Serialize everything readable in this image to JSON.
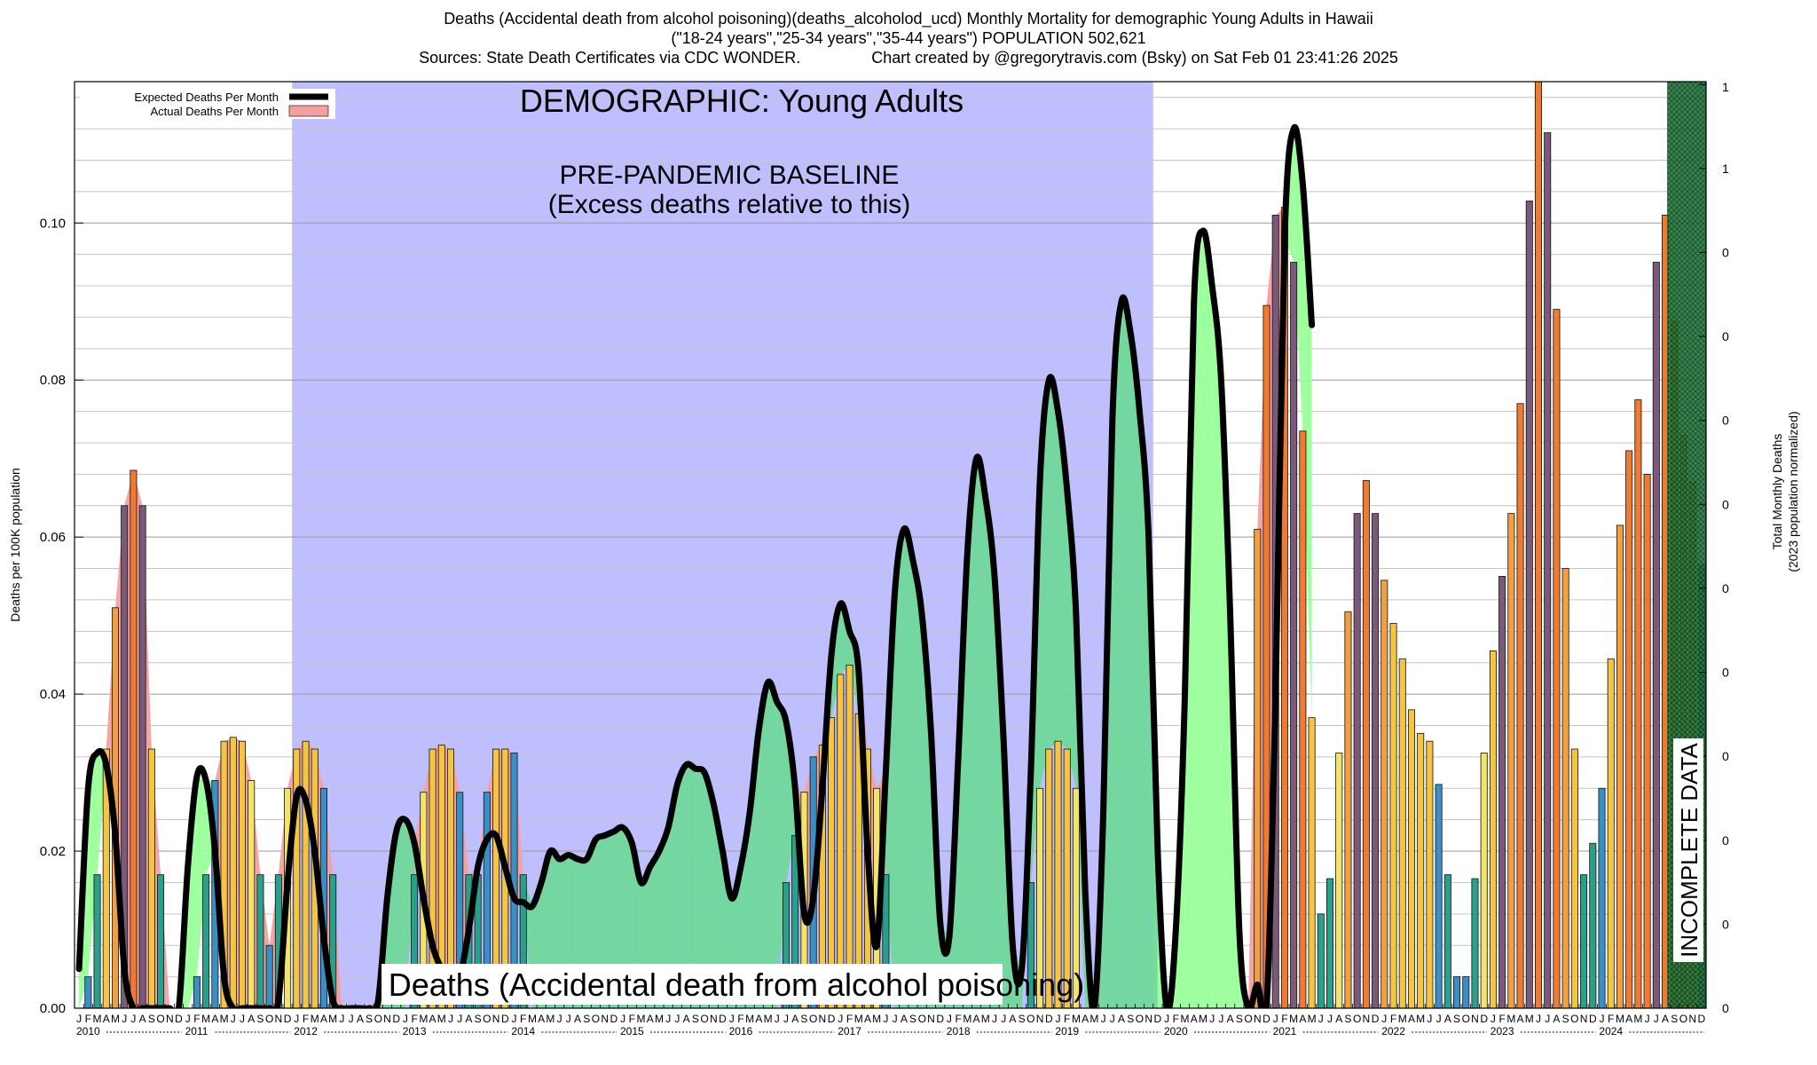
{
  "header": {
    "line1": "Deaths (Accidental death from alcohol poisoning)(deaths_alcoholod_ucd) Monthly Mortality for demographic Young Adults in Hawaii",
    "line2": "(\"18-24 years\",\"25-34 years\",\"35-44 years\") POPULATION 502,621",
    "line3": "Sources: State Death Certificates via CDC WONDER.                Chart created by @gregorytravis.com (Bsky) on Sat Feb 01 23:41:26 2025"
  },
  "chart_data": {
    "type": "bar",
    "title": "Deaths (Accidental death from alcohol poisoning)(deaths_alcoholod_ucd) Monthly Mortality for demographic Young Adults in Hawaii",
    "ylabel": "Deaths per 100K population",
    "ylabel_right": "Total Monthly Deaths",
    "ylabel_right_sub": "(2023 population normalized)",
    "ylim": [
      0,
      0.118
    ],
    "yticks": [
      0.0,
      0.02,
      0.04,
      0.06,
      0.08,
      0.1
    ],
    "ytick_labels": [
      "0.00",
      "0.02",
      "0.04",
      "0.06",
      "0.08",
      "0.10"
    ],
    "right_ticks": [
      "0",
      "0",
      "0",
      "0",
      "0",
      "0",
      "0",
      "0",
      "0",
      "0",
      "1",
      "1"
    ],
    "month_letters": [
      "J",
      "F",
      "M",
      "A",
      "M",
      "J",
      "J",
      "A",
      "S",
      "O",
      "N",
      "D"
    ],
    "years": [
      "2010",
      "2011",
      "2012",
      "2013",
      "2014",
      "2015",
      "2016",
      "2017",
      "2018",
      "2019",
      "2020",
      "2021",
      "2022",
      "2023",
      "2024"
    ],
    "months_total": 180,
    "baseline_start_month": 24,
    "baseline_end_month": 119,
    "incomplete_start_month": 175.7,
    "legend": [
      {
        "name": "Expected Deaths Per Month",
        "color": "#000000"
      },
      {
        "name": "Actual Deaths Per Month",
        "color": "#f4a0a0"
      }
    ],
    "legend_placement": "top-left",
    "annotations": {
      "demographic": "DEMOGRAPHIC: Young Adults",
      "baseline_line1": "PRE-PANDEMIC BASELINE",
      "baseline_line2": "(Excess deaths relative to this)",
      "bottom_label": "Deaths (Accidental death from alcohol poisoning)",
      "incomplete": "INCOMPLETE DATA"
    },
    "colors": {
      "baseline_region": "#bfbfff",
      "excess_fill": "#99ff99",
      "deficit_fill": "#70d89a",
      "actual_area": "#f4a0a0",
      "expected_line": "#000000",
      "incomplete_pattern": "#1a6f30",
      "bar_palette": [
        "#3a8fc4",
        "#2aa08a",
        "#5a9a6a",
        "#f2e46a",
        "#f4c542",
        "#f0a040",
        "#f07a30",
        "#7a5a78"
      ]
    },
    "actual": [
      0.0,
      0.004,
      0.017,
      0.033,
      0.051,
      0.064,
      0.0685,
      0.064,
      0.033,
      0.017,
      0.0,
      0.0,
      0.0,
      0.004,
      0.017,
      0.029,
      0.034,
      0.0345,
      0.034,
      0.029,
      0.017,
      0.008,
      0.017,
      0.028,
      0.033,
      0.034,
      0.033,
      0.028,
      0.017,
      0.0,
      0.0,
      0.0,
      0.0,
      0.0,
      0.0,
      0.0,
      0.0,
      0.017,
      0.0275,
      0.033,
      0.0335,
      0.033,
      0.0275,
      0.017,
      0.017,
      0.0275,
      0.033,
      0.033,
      0.0325,
      0.017,
      0.0,
      0.0,
      0.0,
      0.0,
      0.0,
      0.0,
      0.0,
      0.0,
      0.0,
      0.0,
      0.0,
      0.0,
      0.0,
      0.0,
      0.0,
      0.0,
      0.0,
      0.0,
      0.0,
      0.0,
      0.0,
      0.0,
      0.0,
      0.0,
      0.0,
      0.0,
      0.0,
      0.0,
      0.016,
      0.022,
      0.0275,
      0.032,
      0.0335,
      0.037,
      0.0425,
      0.0437,
      0.0375,
      0.033,
      0.028,
      0.017,
      0.0,
      0.0,
      0.0,
      0.0,
      0.0,
      0.0,
      0.0,
      0.0,
      0.0,
      0.0,
      0.0,
      0.0,
      0.0,
      0.0,
      0.0,
      0.016,
      0.028,
      0.033,
      0.034,
      0.033,
      0.028,
      0.0,
      0.0,
      0.0,
      0.0,
      0.0,
      0.0,
      0.0,
      0.0,
      0.0,
      0.0,
      0.0,
      0.0,
      0.0,
      0.0,
      0.0,
      0.0,
      0.0,
      0.0,
      0.0,
      0.061,
      0.0895,
      0.101,
      0.102,
      0.095,
      0.0735,
      0.037,
      0.012,
      0.0165,
      0.0325,
      0.0505,
      0.063,
      0.0672,
      0.063,
      0.0545,
      0.049,
      0.0445,
      0.038,
      0.035,
      0.034,
      0.0285,
      0.017,
      0.004,
      0.004,
      0.0165,
      0.0325,
      0.0455,
      0.055,
      0.063,
      0.077,
      0.1028,
      0.118,
      0.1115,
      0.089,
      0.056,
      0.033,
      0.017,
      0.021,
      0.028,
      0.0445,
      0.0615,
      0.071,
      0.0775,
      0.068,
      0.095,
      0.101
    ],
    "actual_extra": [
      0.0875,
      0.073,
      0.067,
      0.0565,
      0.033,
      0.008
    ],
    "expected": [
      0.005,
      0.028,
      0.0325,
      0.031,
      0.022,
      0.005,
      0.0,
      0.0,
      0.0,
      0.0,
      0.0,
      0.0,
      0.018,
      0.0295,
      0.029,
      0.02,
      0.004,
      0.0,
      0.0,
      0.0,
      0.0,
      0.0,
      0.001,
      0.016,
      0.027,
      0.0265,
      0.02,
      0.009,
      0.001,
      0.0,
      0.0,
      0.0,
      0.0,
      0.001,
      0.014,
      0.0225,
      0.024,
      0.021,
      0.014,
      0.008,
      0.005,
      0.0035,
      0.004,
      0.01,
      0.018,
      0.0215,
      0.022,
      0.018,
      0.014,
      0.0135,
      0.013,
      0.016,
      0.02,
      0.019,
      0.0195,
      0.019,
      0.019,
      0.0215,
      0.022,
      0.0225,
      0.023,
      0.021,
      0.016,
      0.018,
      0.02,
      0.023,
      0.0285,
      0.031,
      0.0305,
      0.03,
      0.026,
      0.02,
      0.014,
      0.018,
      0.025,
      0.0355,
      0.0415,
      0.039,
      0.0365,
      0.028,
      0.012,
      0.014,
      0.028,
      0.045,
      0.0515,
      0.048,
      0.043,
      0.02,
      0.008,
      0.03,
      0.053,
      0.061,
      0.057,
      0.05,
      0.035,
      0.011,
      0.009,
      0.032,
      0.058,
      0.07,
      0.065,
      0.055,
      0.034,
      0.008,
      0.005,
      0.03,
      0.067,
      0.08,
      0.076,
      0.066,
      0.05,
      0.015,
      0.0,
      0.025,
      0.075,
      0.09,
      0.086,
      0.076,
      0.06,
      0.02,
      0.0,
      0.01,
      0.04,
      0.09,
      0.099,
      0.092,
      0.08,
      0.05,
      0.01,
      0.0,
      0.003,
      0.0,
      0.04,
      0.098,
      0.112,
      0.105,
      0.087
    ]
  }
}
